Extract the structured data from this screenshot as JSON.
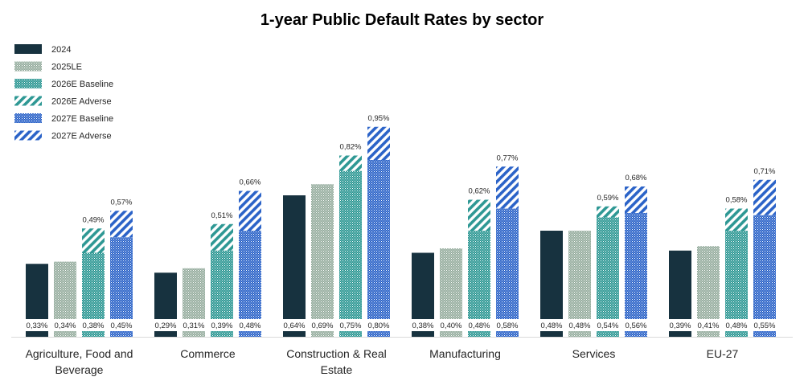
{
  "chart_data": {
    "type": "bar",
    "title": "1-year Public Default Rates by sector",
    "xlabel": "",
    "ylabel": "",
    "ylim": [
      0,
      1.0
    ],
    "grid": false,
    "legend_position": "top-left",
    "categories": [
      [
        "Agriculture, Food and",
        "Beverage"
      ],
      [
        "Commerce"
      ],
      [
        "Construction & Real",
        "Estate"
      ],
      [
        "Manufacturing"
      ],
      [
        "Services"
      ],
      [
        "EU-27"
      ]
    ],
    "series": [
      {
        "name": "2024",
        "values": [
          0.33,
          0.29,
          0.64,
          0.38,
          0.48,
          0.39
        ]
      },
      {
        "name": "2025LE",
        "values": [
          0.34,
          0.31,
          0.69,
          0.4,
          0.48,
          0.41
        ]
      },
      {
        "name": "2026E Baseline",
        "values": [
          0.38,
          0.39,
          0.75,
          0.48,
          0.54,
          0.48
        ]
      },
      {
        "name": "2026E Adverse",
        "values": [
          0.49,
          0.51,
          0.82,
          0.62,
          0.59,
          0.58
        ]
      },
      {
        "name": "2027E Baseline",
        "values": [
          0.45,
          0.48,
          0.8,
          0.58,
          0.56,
          0.55
        ]
      },
      {
        "name": "2027E Adverse",
        "values": [
          0.57,
          0.66,
          0.95,
          0.77,
          0.68,
          0.71
        ]
      }
    ],
    "baseline_labels": [
      [
        "0,33%",
        "0,34%",
        "0,38%",
        "0,45%"
      ],
      [
        "0,29%",
        "0,31%",
        "0,39%",
        "0,48%"
      ],
      [
        "0,64%",
        "0,69%",
        "0,75%",
        "0,80%"
      ],
      [
        "0,38%",
        "0,40%",
        "0,48%",
        "0,58%"
      ],
      [
        "0,48%",
        "0,48%",
        "0,54%",
        "0,56%"
      ],
      [
        "0,39%",
        "0,41%",
        "0,48%",
        "0,55%"
      ]
    ],
    "adverse_labels": [
      [
        "0,49%",
        "0,57%"
      ],
      [
        "0,51%",
        "0,66%"
      ],
      [
        "0,82%",
        "0,95%"
      ],
      [
        "0,62%",
        "0,77%"
      ],
      [
        "0,59%",
        "0,68%"
      ],
      [
        "0,58%",
        "0,71%"
      ]
    ],
    "colors": {
      "s2024": "#17323f",
      "s2025": "#97ae9f",
      "s2026": "#2e9894",
      "s2027": "#2b63c8",
      "label_bg": "#ffffff"
    }
  }
}
